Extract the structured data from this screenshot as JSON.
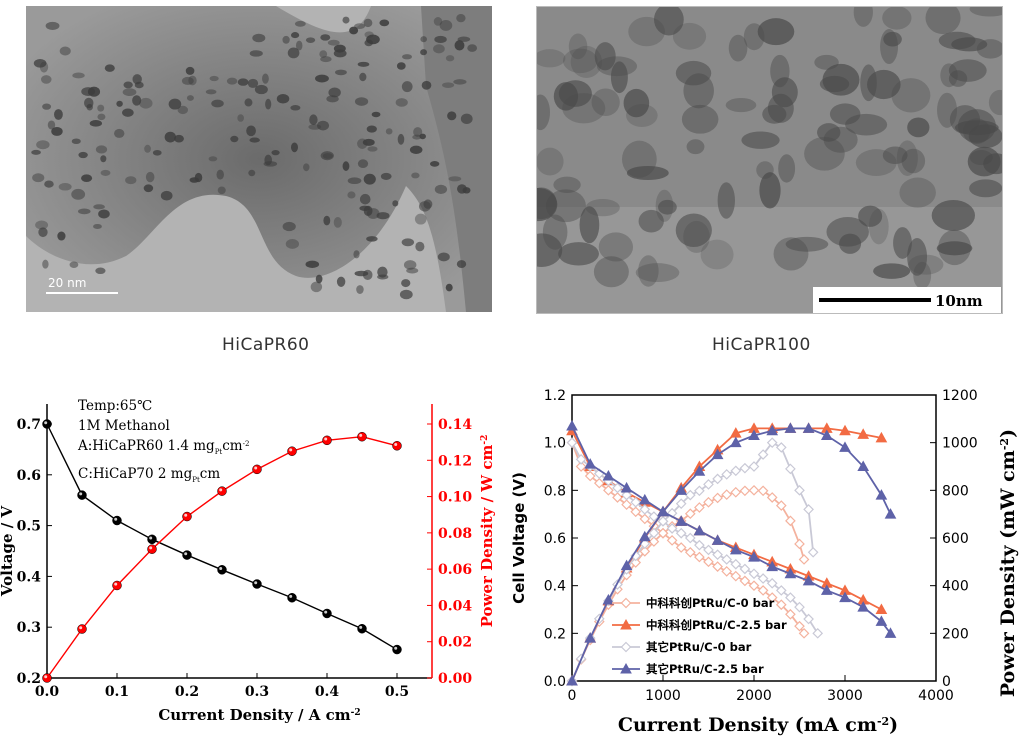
{
  "images": {
    "left": {
      "caption": "HiCaPR60",
      "scalebar": "20 nm"
    },
    "right": {
      "caption": "HiCaPR100",
      "scalebar": "10nm"
    }
  },
  "chart_data": [
    {
      "type": "line",
      "xlabel": "Current Density / A cm",
      "xlabel_sup": "-2",
      "ylabel_left": "Voltage / V",
      "ylabel_right": "Power Density / W cm",
      "ylabel_right_sup": "-2",
      "xlim": [
        0,
        0.55
      ],
      "ylim_left": [
        0.2,
        0.7
      ],
      "ylim_right": [
        0,
        0.14
      ],
      "xticks": [
        "0.0",
        "0.1",
        "0.2",
        "0.3",
        "0.4",
        "0.5"
      ],
      "yticks_left": [
        "0.2",
        "0.3",
        "0.4",
        "0.5",
        "0.6",
        "0.7"
      ],
      "yticks_right": [
        "0.00",
        "0.02",
        "0.04",
        "0.06",
        "0.08",
        "0.10",
        "0.12",
        "0.14"
      ],
      "annotations": [
        "Temp:65℃",
        "1M Methanol",
        "A:HiCaPR60 1.4 mg",
        "C:HiCaP70    2 mg"
      ],
      "annotation_units": [
        "Pt",
        "cm",
        "-2"
      ],
      "series": [
        {
          "axis": "left",
          "color": "#000000",
          "x": [
            0.0,
            0.05,
            0.1,
            0.15,
            0.2,
            0.25,
            0.3,
            0.35,
            0.4,
            0.45,
            0.5
          ],
          "y": [
            0.7,
            0.56,
            0.51,
            0.473,
            0.442,
            0.413,
            0.385,
            0.358,
            0.327,
            0.297,
            0.256
          ]
        },
        {
          "axis": "right",
          "color": "#ff0000",
          "x": [
            0.0,
            0.05,
            0.1,
            0.15,
            0.2,
            0.25,
            0.3,
            0.35,
            0.4,
            0.45,
            0.5
          ],
          "y": [
            0.0,
            0.027,
            0.051,
            0.071,
            0.089,
            0.103,
            0.115,
            0.125,
            0.131,
            0.133,
            0.128
          ]
        }
      ]
    },
    {
      "type": "line",
      "xlabel": "Current Density (mA cm",
      "xlabel_sup": "-2",
      "ylabel_left": "Cell Voltage (V)",
      "ylabel_right": "Power Density (mW cm",
      "ylabel_right_sup": "-2",
      "xlim": [
        0,
        4000
      ],
      "ylim_left": [
        0,
        1.2
      ],
      "ylim_right": [
        0,
        1200
      ],
      "xticks": [
        "0",
        "1000",
        "2000",
        "3000",
        "4000"
      ],
      "yticks_left": [
        "0.0",
        "0.2",
        "0.4",
        "0.6",
        "0.8",
        "1.0",
        "1.2"
      ],
      "yticks_right": [
        "0",
        "200",
        "400",
        "600",
        "800",
        "1000",
        "1200"
      ],
      "series": [
        {
          "name": "中科科创PtRu/C-0 bar",
          "color": "#f4b29e",
          "marker": "diamond-open",
          "voltage_x": [
            0,
            100,
            200,
            300,
            400,
            500,
            600,
            700,
            800,
            900,
            1000,
            1100,
            1200,
            1300,
            1400,
            1500,
            1600,
            1700,
            1800,
            1900,
            2000,
            2100,
            2200,
            2300,
            2400,
            2500,
            2550
          ],
          "voltage_y": [
            1.0,
            0.9,
            0.86,
            0.83,
            0.8,
            0.77,
            0.74,
            0.71,
            0.68,
            0.65,
            0.62,
            0.59,
            0.56,
            0.54,
            0.52,
            0.5,
            0.48,
            0.46,
            0.44,
            0.42,
            0.4,
            0.38,
            0.35,
            0.32,
            0.28,
            0.23,
            0.2
          ],
          "power_x": [
            0,
            100,
            200,
            300,
            400,
            500,
            600,
            700,
            800,
            900,
            1000,
            1100,
            1200,
            1300,
            1400,
            1500,
            1600,
            1700,
            1800,
            1900,
            2000,
            2100,
            2200,
            2300,
            2400,
            2500,
            2550
          ],
          "power_y": [
            0,
            90,
            172,
            249,
            320,
            385,
            444,
            497,
            544,
            585,
            620,
            649,
            672,
            702,
            728,
            750,
            768,
            782,
            792,
            798,
            800,
            798,
            770,
            736,
            672,
            575,
            510
          ]
        },
        {
          "name": "中科科创PtRu/C-2.5 bar",
          "color": "#f26b43",
          "marker": "triangle-filled",
          "voltage_x": [
            0,
            200,
            400,
            600,
            800,
            1000,
            1200,
            1400,
            1600,
            1800,
            2000,
            2200,
            2400,
            2600,
            2800,
            3000,
            3200,
            3400
          ],
          "voltage_y": [
            1.05,
            0.9,
            0.84,
            0.79,
            0.75,
            0.71,
            0.67,
            0.63,
            0.59,
            0.56,
            0.53,
            0.5,
            0.47,
            0.44,
            0.41,
            0.38,
            0.34,
            0.3
          ],
          "power_x": [
            0,
            200,
            400,
            600,
            800,
            1000,
            1200,
            1400,
            1600,
            1800,
            2000,
            2200,
            2400,
            2600,
            2800,
            3000,
            3200,
            3400
          ],
          "power_y": [
            0,
            180,
            336,
            474,
            600,
            710,
            810,
            900,
            970,
            1040,
            1060,
            1060,
            1060,
            1060,
            1060,
            1050,
            1035,
            1020
          ]
        },
        {
          "name": "其它PtRu/C-0 bar",
          "color": "#c9c9d6",
          "marker": "diamond-open",
          "voltage_x": [
            0,
            100,
            200,
            300,
            400,
            500,
            600,
            700,
            800,
            900,
            1000,
            1100,
            1200,
            1300,
            1400,
            1500,
            1600,
            1700,
            1800,
            1900,
            2000,
            2100,
            2200,
            2300,
            2400,
            2500,
            2600,
            2700
          ],
          "voltage_y": [
            1.0,
            0.93,
            0.9,
            0.87,
            0.84,
            0.81,
            0.78,
            0.75,
            0.72,
            0.69,
            0.67,
            0.64,
            0.62,
            0.6,
            0.57,
            0.55,
            0.53,
            0.51,
            0.49,
            0.47,
            0.45,
            0.43,
            0.41,
            0.38,
            0.35,
            0.31,
            0.26,
            0.2
          ],
          "power_x": [
            0,
            100,
            200,
            300,
            400,
            500,
            600,
            700,
            800,
            900,
            1000,
            1100,
            1200,
            1300,
            1400,
            1500,
            1600,
            1700,
            1800,
            1900,
            2000,
            2100,
            2200,
            2300,
            2400,
            2500,
            2600,
            2650
          ],
          "power_y": [
            0,
            93,
            180,
            261,
            336,
            405,
            468,
            525,
            576,
            621,
            670,
            704,
            744,
            780,
            798,
            825,
            848,
            867,
            882,
            893,
            900,
            950,
            1000,
            980,
            890,
            800,
            720,
            540
          ]
        },
        {
          "name": "其它PtRu/C-2.5 bar",
          "color": "#5e62a8",
          "marker": "triangle-filled",
          "voltage_x": [
            0,
            200,
            400,
            600,
            800,
            1000,
            1200,
            1400,
            1600,
            1800,
            2000,
            2200,
            2400,
            2600,
            2800,
            3000,
            3200,
            3400,
            3500
          ],
          "voltage_y": [
            1.07,
            0.91,
            0.86,
            0.81,
            0.76,
            0.71,
            0.67,
            0.63,
            0.59,
            0.55,
            0.52,
            0.48,
            0.45,
            0.42,
            0.38,
            0.35,
            0.31,
            0.25,
            0.2
          ],
          "power_x": [
            0,
            200,
            400,
            600,
            800,
            1000,
            1200,
            1400,
            1600,
            1800,
            2000,
            2200,
            2400,
            2600,
            2800,
            3000,
            3200,
            3400,
            3500
          ],
          "power_y": [
            0,
            180,
            340,
            484,
            605,
            710,
            800,
            880,
            950,
            1000,
            1030,
            1050,
            1060,
            1060,
            1030,
            980,
            900,
            780,
            700
          ]
        }
      ]
    }
  ]
}
